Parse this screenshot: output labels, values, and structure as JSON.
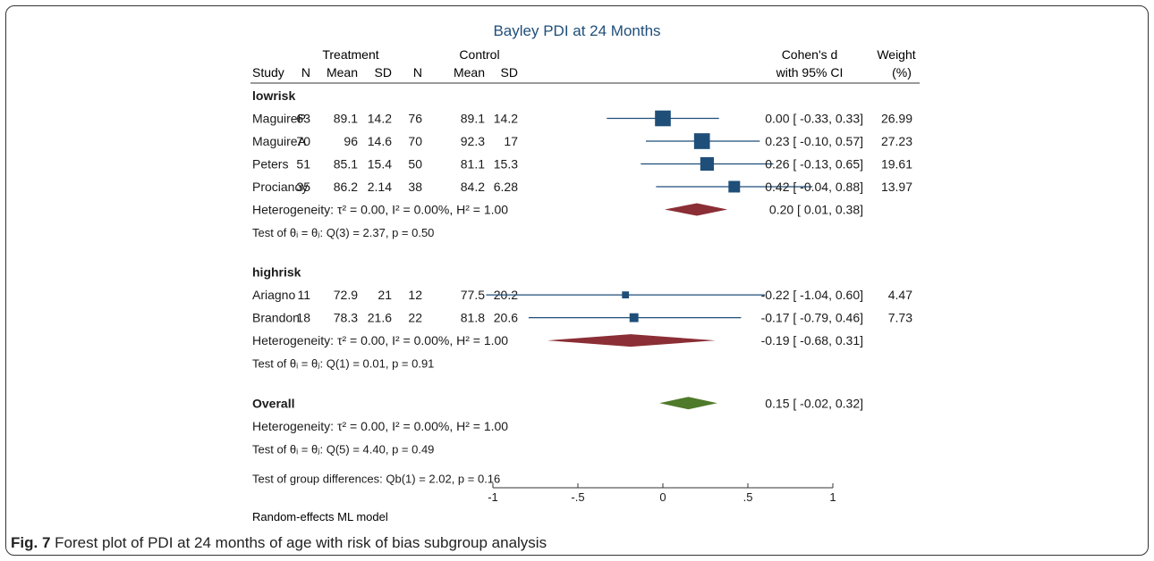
{
  "caption": {
    "label": "Fig. 7",
    "text": "Forest plot of PDI at 24 months of age with risk of bias subgroup analysis"
  },
  "chart_data": {
    "type": "forest",
    "title": "Bayley PDI at 24 Months",
    "columns": {
      "treatment_group": "Treatment",
      "control_group": "Control",
      "study": "Study",
      "n": "N",
      "mean": "Mean",
      "sd": "SD",
      "effect_line1": "Cohen's d",
      "effect_line2": "with 95% CI",
      "weight_line1": "Weight",
      "weight_line2": "(%)"
    },
    "groups": [
      {
        "name": "lowrisk",
        "studies": [
          {
            "study": "MaguireP",
            "t_n": "63",
            "t_mean": "89.1",
            "t_sd": "14.2",
            "c_n": "76",
            "c_mean": "89.1",
            "c_sd": "14.2",
            "d": 0.0,
            "lo": -0.33,
            "hi": 0.33,
            "ci_text": "0.00 [  -0.33,  0.33]",
            "weight": "26.99",
            "w": 26.99
          },
          {
            "study": "MaguireA",
            "t_n": "70",
            "t_mean": "96",
            "t_sd": "14.6",
            "c_n": "70",
            "c_mean": "92.3",
            "c_sd": "17",
            "d": 0.23,
            "lo": -0.1,
            "hi": 0.57,
            "ci_text": "0.23 [  -0.10,  0.57]",
            "weight": "27.23",
            "w": 27.23
          },
          {
            "study": "Peters",
            "t_n": "51",
            "t_mean": "85.1",
            "t_sd": "15.4",
            "c_n": "50",
            "c_mean": "81.1",
            "c_sd": "15.3",
            "d": 0.26,
            "lo": -0.13,
            "hi": 0.65,
            "ci_text": "0.26 [  -0.13,  0.65]",
            "weight": "19.61",
            "w": 19.61
          },
          {
            "study": "Procianoy",
            "t_n": "35",
            "t_mean": "86.2",
            "t_sd": "2.14",
            "c_n": "38",
            "c_mean": "84.2",
            "c_sd": "6.28",
            "d": 0.42,
            "lo": -0.04,
            "hi": 0.88,
            "ci_text": "0.42 [  -0.04,  0.88]",
            "weight": "13.97",
            "w": 13.97
          }
        ],
        "heterogeneity": "Heterogeneity: τ² = 0.00, I² = 0.00%, H² = 1.00",
        "pooled": {
          "d": 0.2,
          "lo": 0.01,
          "hi": 0.38,
          "ci_text": "0.20 [   0.01,  0.38]"
        },
        "test": "Test of θᵢ = θⱼ: Q(3) = 2.37, p = 0.50"
      },
      {
        "name": "highrisk",
        "studies": [
          {
            "study": "Ariagno",
            "t_n": "11",
            "t_mean": "72.9",
            "t_sd": "21",
            "c_n": "12",
            "c_mean": "77.5",
            "c_sd": "20.2",
            "d": -0.22,
            "lo": -1.04,
            "hi": 0.6,
            "ci_text": "-0.22 [  -1.04,  0.60]",
            "weight": "4.47",
            "w": 4.47
          },
          {
            "study": "Brandon",
            "t_n": "18",
            "t_mean": "78.3",
            "t_sd": "21.6",
            "c_n": "22",
            "c_mean": "81.8",
            "c_sd": "20.6",
            "d": -0.17,
            "lo": -0.79,
            "hi": 0.46,
            "ci_text": "-0.17 [  -0.79,  0.46]",
            "weight": "7.73",
            "w": 7.73
          }
        ],
        "heterogeneity": "Heterogeneity: τ² = 0.00, I² = 0.00%, H² = 1.00",
        "pooled": {
          "d": -0.19,
          "lo": -0.68,
          "hi": 0.31,
          "ci_text": "-0.19 [  -0.68,  0.31]"
        },
        "test": "Test of θᵢ = θⱼ: Q(1) = 0.01, p = 0.91"
      }
    ],
    "overall": {
      "name": "Overall",
      "d": 0.15,
      "lo": -0.02,
      "hi": 0.32,
      "ci_text": "0.15 [  -0.02,  0.32]",
      "heterogeneity": "Heterogeneity: τ² = 0.00, I² = 0.00%, H² = 1.00",
      "test": "Test of θᵢ = θⱼ: Q(5) = 4.40, p = 0.49"
    },
    "group_difference_test": "Test of group differences: Qb(1) = 2.02, p = 0.16",
    "x_axis": {
      "ticks": [
        -1,
        -0.5,
        0,
        0.5,
        1
      ],
      "tick_labels": [
        "-1",
        "-.5",
        "0",
        ".5",
        "1"
      ],
      "range": [
        -1,
        1
      ]
    },
    "footnote": "Random-effects ML model",
    "colors": {
      "title": "#1f4e79",
      "study_marker": "#1f4e79",
      "subgroup_diamond": "#8b2e35",
      "overall_diamond": "#4e7a2a",
      "ci_line": "#1f4e79"
    }
  }
}
